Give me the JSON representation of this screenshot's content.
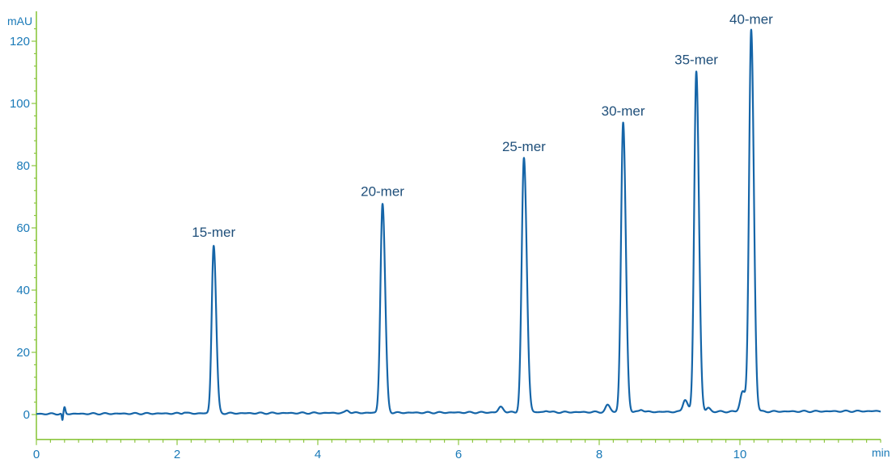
{
  "chart_data": {
    "type": "line",
    "title": "",
    "xlabel": "min",
    "ylabel": "mAU",
    "xlim": [
      0,
      12
    ],
    "ylim": [
      -8,
      127
    ],
    "x_ticks": [
      0,
      2,
      4,
      6,
      8,
      10
    ],
    "x_tick_labels": [
      "0",
      "2",
      "4",
      "6",
      "8",
      "10"
    ],
    "x_minor_tick_step": 0.2,
    "y_ticks": [
      0,
      20,
      40,
      60,
      80,
      100,
      120
    ],
    "y_tick_labels": [
      "0",
      "20",
      "40",
      "60",
      "80",
      "100",
      "120"
    ],
    "y_minor_tick_step": 4,
    "grid": false,
    "legend": "none",
    "baseline": 0.2,
    "baseline_drift_end": 1.1,
    "peaks": [
      {
        "name": "15-mer",
        "rt": 2.52,
        "height": 54,
        "width": 0.028
      },
      {
        "name": "20-mer",
        "rt": 4.92,
        "height": 67.2,
        "width": 0.03
      },
      {
        "name": "25-mer",
        "rt": 6.93,
        "height": 81.6,
        "width": 0.032
      },
      {
        "name": "30-mer",
        "rt": 8.34,
        "height": 93,
        "width": 0.03
      },
      {
        "name": "35-mer",
        "rt": 9.38,
        "height": 109.5,
        "width": 0.03
      },
      {
        "name": "40-mer",
        "rt": 10.16,
        "height": 122.5,
        "width": 0.03
      }
    ],
    "minor_peaks": [
      {
        "rt": 0.4,
        "height": 2.0,
        "width": 0.01
      },
      {
        "rt": 2.1,
        "height": 0.4,
        "width": 0.02
      },
      {
        "rt": 4.42,
        "height": 0.8,
        "width": 0.025
      },
      {
        "rt": 6.6,
        "height": 1.8,
        "width": 0.03
      },
      {
        "rt": 7.25,
        "height": 0.5,
        "width": 0.025
      },
      {
        "rt": 8.12,
        "height": 2.2,
        "width": 0.03
      },
      {
        "rt": 8.6,
        "height": 0.8,
        "width": 0.025
      },
      {
        "rt": 9.22,
        "height": 4.0,
        "width": 0.03
      },
      {
        "rt": 9.55,
        "height": 1.2,
        "width": 0.025
      },
      {
        "rt": 10.04,
        "height": 6.5,
        "width": 0.035
      }
    ],
    "colors": {
      "trace": "#1565a8",
      "axis": "#8cc63f",
      "text": "#1a7ab8",
      "peak_label": "#1f4f7a"
    }
  }
}
